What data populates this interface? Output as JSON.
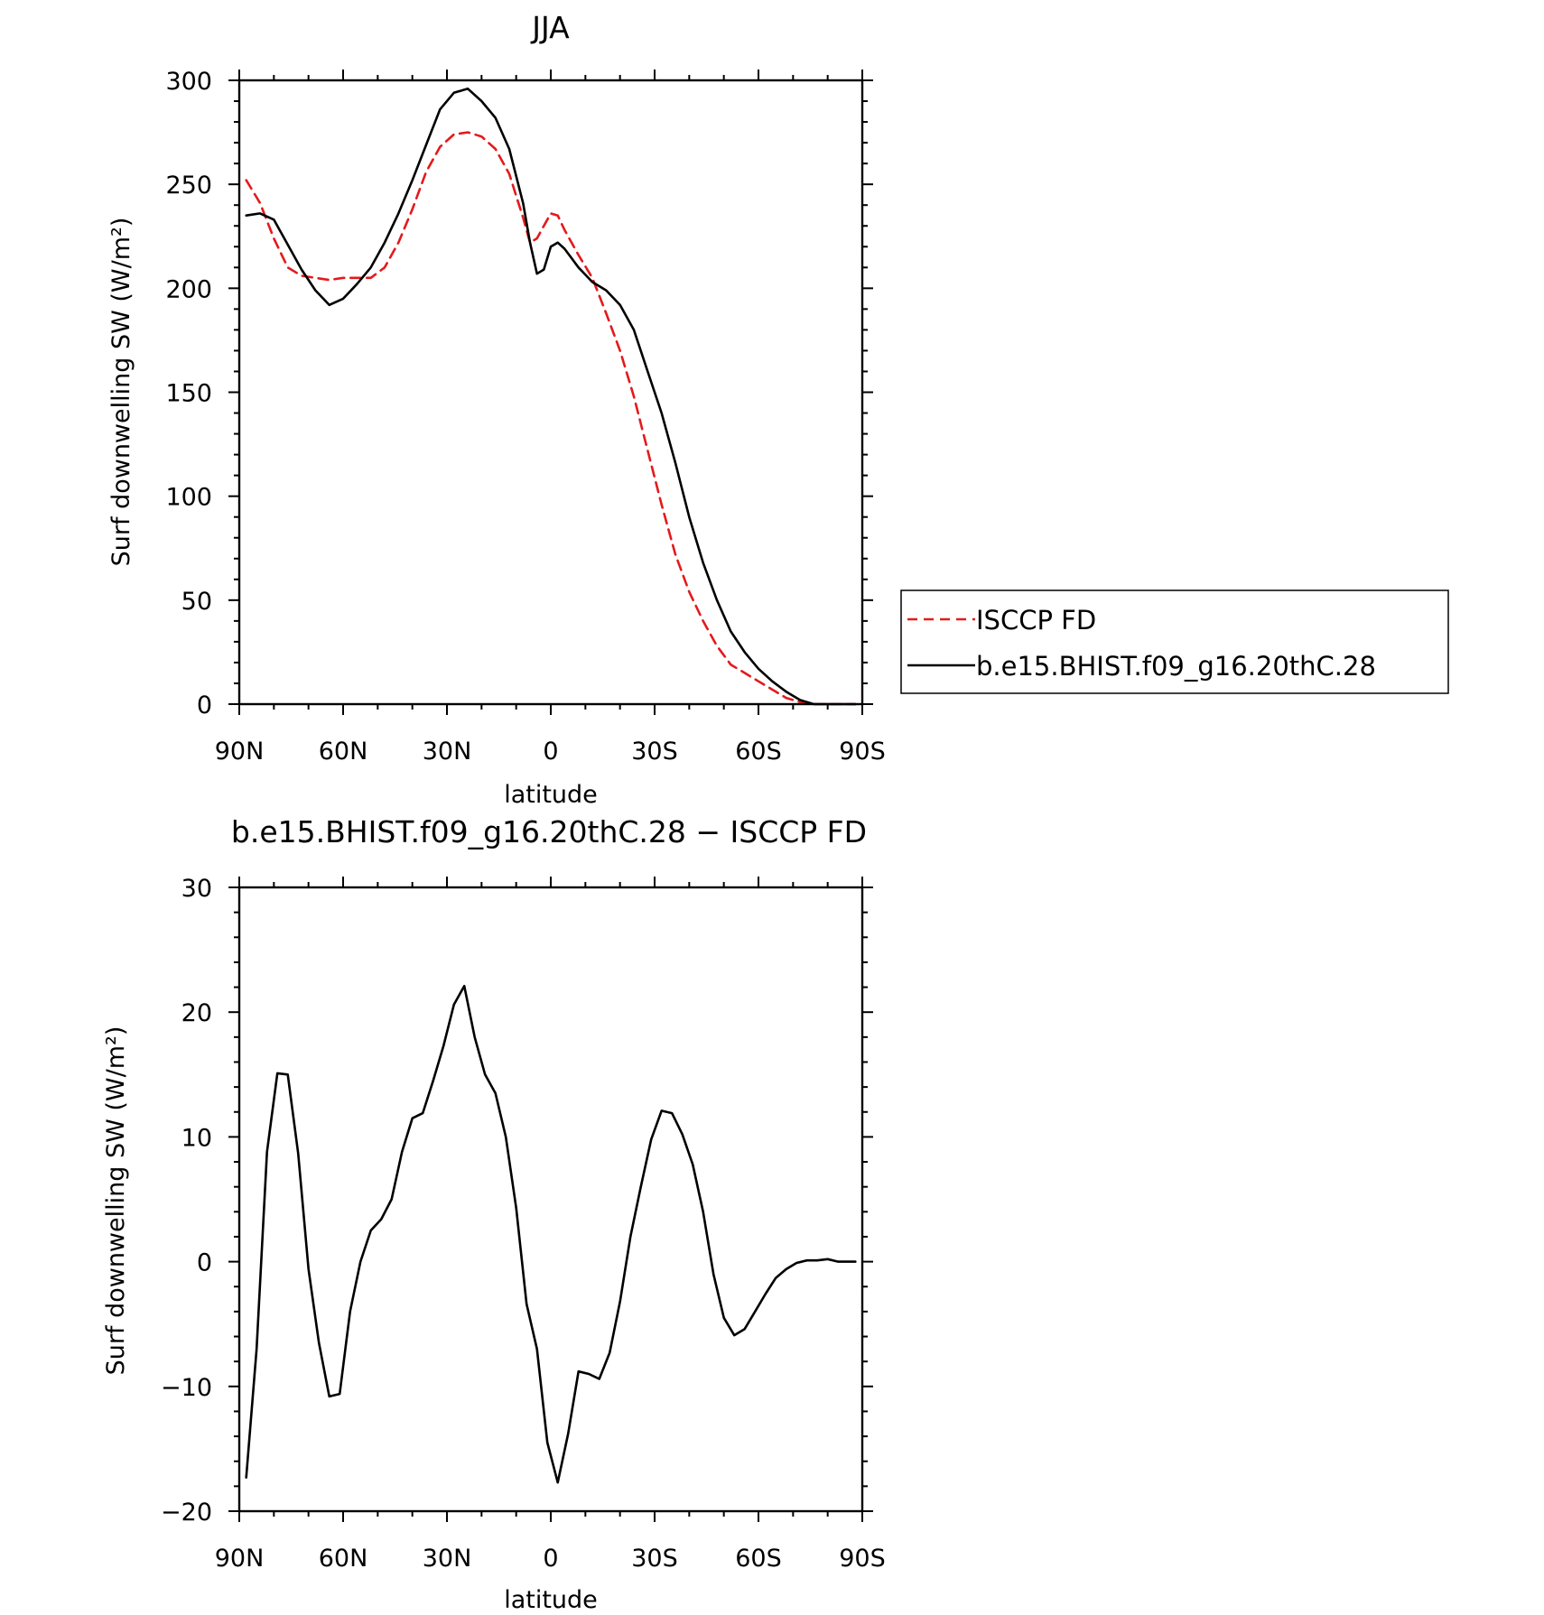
{
  "chart_data": [
    {
      "type": "line",
      "title": "JJA",
      "xlabel": "latitude",
      "ylabel": "Surf downwelling SW (W/m²)",
      "xlim": [
        90,
        -90
      ],
      "ylim": [
        0,
        300
      ],
      "yticks": [
        0,
        50,
        100,
        150,
        200,
        250,
        300
      ],
      "xticks": [
        90,
        60,
        30,
        0,
        -30,
        -60,
        -90
      ],
      "xtick_labels": [
        "90N",
        "60N",
        "30N",
        "0",
        "30S",
        "60S",
        "90S"
      ],
      "legend": {
        "placement": "right",
        "entries": [
          "ISCCP FD",
          "b.e15.BHIST.f09_g16.20thC.28"
        ]
      },
      "series": [
        {
          "name": "ISCCP FD",
          "color": "#e31a1c",
          "dash": "dashed",
          "x": [
            88,
            84,
            80,
            76,
            72,
            68,
            64,
            60,
            56,
            52,
            48,
            44,
            40,
            36,
            32,
            28,
            24,
            20,
            16,
            12,
            8,
            6,
            4,
            2,
            0,
            -2,
            -4,
            -8,
            -12,
            -16,
            -20,
            -24,
            -28,
            -32,
            -36,
            -40,
            -44,
            -48,
            -52,
            -56,
            -60,
            -64,
            -68,
            -72,
            -76,
            -80,
            -84,
            -88
          ],
          "values": [
            252,
            241,
            224,
            210,
            206,
            205,
            204,
            205,
            205,
            205,
            210,
            222,
            238,
            256,
            268,
            274,
            275,
            273,
            267,
            255,
            234,
            222,
            224,
            230,
            236,
            235,
            228,
            216,
            205,
            188,
            170,
            148,
            122,
            96,
            72,
            54,
            40,
            28,
            19,
            15,
            11,
            7,
            3,
            1,
            0,
            0,
            0,
            0
          ]
        },
        {
          "name": "b.e15.BHIST.f09_g16.20thC.28",
          "color": "#000000",
          "dash": "solid",
          "x": [
            88,
            84,
            80,
            76,
            72,
            68,
            64,
            60,
            56,
            52,
            48,
            44,
            40,
            36,
            32,
            28,
            24,
            20,
            16,
            12,
            8,
            6,
            4,
            2,
            0,
            -2,
            -4,
            -8,
            -12,
            -16,
            -20,
            -24,
            -28,
            -32,
            -36,
            -40,
            -44,
            -48,
            -52,
            -56,
            -60,
            -64,
            -68,
            -72,
            -76,
            -80,
            -84,
            -88
          ],
          "values": [
            235,
            236,
            233,
            221,
            209,
            199,
            192,
            195,
            202,
            210,
            222,
            236,
            252,
            269,
            286,
            294,
            296,
            290,
            282,
            267,
            241,
            222,
            207,
            209,
            220,
            222,
            219,
            210,
            203,
            199,
            192,
            180,
            160,
            140,
            116,
            90,
            68,
            50,
            35,
            25,
            17,
            11,
            6,
            2,
            0,
            0,
            0,
            0
          ]
        }
      ]
    },
    {
      "type": "line",
      "title": "b.e15.BHIST.f09_g16.20thC.28 − ISCCP FD",
      "xlabel": "latitude",
      "ylabel": "Surf downwelling SW (W/m²)",
      "xlim": [
        90,
        -90
      ],
      "ylim": [
        -20,
        30
      ],
      "yticks": [
        -20,
        -10,
        0,
        10,
        20,
        30
      ],
      "ytick_labels": [
        "−20",
        "−10",
        "0",
        "10",
        "20",
        "30"
      ],
      "xticks": [
        90,
        60,
        30,
        0,
        -30,
        -60,
        -90
      ],
      "xtick_labels": [
        "90N",
        "60N",
        "30N",
        "0",
        "30S",
        "60S",
        "90S"
      ],
      "series": [
        {
          "color": "#000000",
          "dash": "solid",
          "x": [
            88,
            85,
            82,
            79,
            76,
            73,
            70,
            67,
            64,
            61,
            58,
            55,
            52,
            49,
            46,
            43,
            40,
            37,
            34,
            31,
            28,
            25,
            22,
            19,
            16,
            13,
            10,
            7,
            4,
            1,
            -2,
            -5,
            -8,
            -11,
            -14,
            -17,
            -20,
            -23,
            -26,
            -29,
            -32,
            -35,
            -38,
            -41,
            -44,
            -47,
            -50,
            -53,
            -56,
            -59,
            -62,
            -65,
            -68,
            -71,
            -74,
            -77,
            -80,
            -83,
            -86,
            -88
          ],
          "values": [
            -17.3,
            -7,
            8.8,
            15.1,
            15,
            8.7,
            -0.6,
            -6.5,
            -10.8,
            -10.6,
            -4,
            0,
            2.5,
            3.4,
            5,
            8.8,
            11.5,
            11.9,
            14.5,
            17.3,
            20.6,
            22.1,
            18,
            15,
            13.5,
            10,
            4.3,
            -3.4,
            -7,
            -14.5,
            -17.7,
            -13.8,
            -8.8,
            -9,
            -9.4,
            -7.3,
            -3.2,
            2,
            6,
            9.8,
            12.1,
            11.9,
            10.2,
            7.8,
            4,
            -1,
            -4.5,
            -5.9,
            -5.4,
            -4,
            -2.6,
            -1.3,
            -0.6,
            -0.1,
            0.1,
            0.1,
            0.2,
            0,
            0,
            0
          ]
        }
      ]
    }
  ]
}
